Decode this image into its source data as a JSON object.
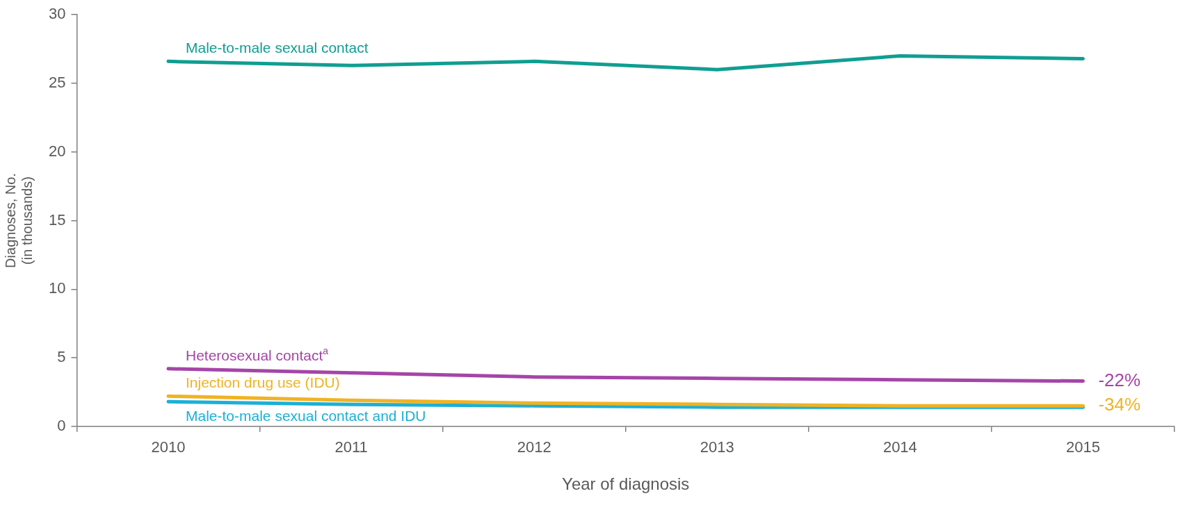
{
  "chart_data": {
    "type": "line",
    "xlabel": "Year of diagnosis",
    "ylabel": "Diagnoses, No.\n(in thousands)",
    "categories": [
      "2010",
      "2011",
      "2012",
      "2013",
      "2014",
      "2015"
    ],
    "series": [
      {
        "name": "Male-to-male sexual contact",
        "color": "#109e92",
        "values": [
          26.6,
          26.3,
          26.6,
          26.0,
          27.0,
          26.8
        ]
      },
      {
        "name": "Heterosexual contact$^{a}$",
        "color": "#a545a8",
        "values": [
          4.2,
          3.9,
          3.6,
          3.5,
          3.4,
          3.3
        ]
      },
      {
        "name": "Injection drug use (IDU)",
        "color": "#f0b323",
        "values": [
          2.2,
          1.9,
          1.7,
          1.6,
          1.5,
          1.5
        ]
      },
      {
        "name": "Male-to-male sexual contact and IDU",
        "color": "#1ab0d8",
        "values": [
          1.8,
          1.6,
          1.5,
          1.4,
          1.4,
          1.4
        ]
      }
    ],
    "annotations": [
      {
        "text": "-22%",
        "x": "2015",
        "y": 3.3
      },
      {
        "text": "-34%",
        "x": "2015",
        "y": 1.5
      }
    ],
    "ylim": [
      0,
      30
    ],
    "yticks": [
      0,
      5,
      10,
      15,
      20,
      25,
      30
    ],
    "grid": false,
    "legend": false,
    "marker": "none",
    "line_style": "solid"
  }
}
